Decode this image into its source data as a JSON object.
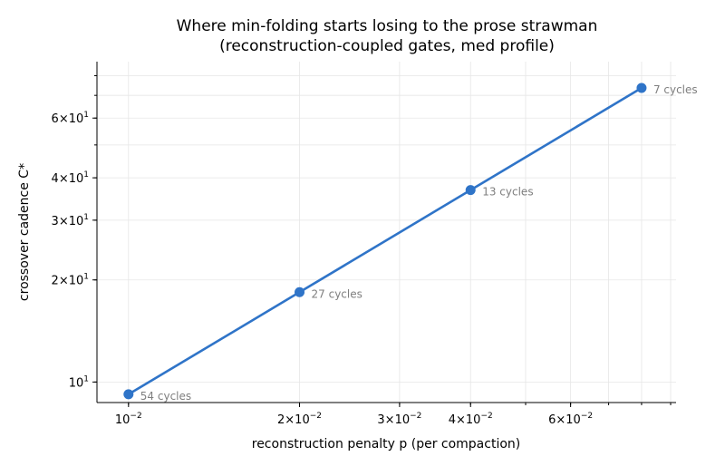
{
  "chart_data": {
    "type": "line",
    "title": "Where min-folding starts losing to the prose strawman",
    "subtitle": "(reconstruction-coupled gates, med profile)",
    "xlabel": "reconstruction penalty p (per compaction)",
    "ylabel": "crossover cadence C*",
    "xscale": "log",
    "yscale": "log",
    "xlim": [
      0.0088,
      0.092
    ],
    "ylim": [
      8.7,
      88
    ],
    "grid": true,
    "grid_minor": true,
    "legend": "none",
    "x": [
      0.01,
      0.02,
      0.04,
      0.08
    ],
    "series": [
      {
        "values": [
          9.2,
          18.4,
          36.8,
          73.6
        ],
        "color": "#2f74c8",
        "point_labels": [
          "54 cycles",
          "27 cycles",
          "13 cycles",
          "7 cycles"
        ]
      }
    ],
    "x_ticks": [
      {
        "value": 0.01,
        "base": "10",
        "exp": "−2"
      },
      {
        "value": 0.02,
        "base": "2×10",
        "exp": "−2"
      },
      {
        "value": 0.03,
        "base": "3×10",
        "exp": "−2"
      },
      {
        "value": 0.04,
        "base": "4×10",
        "exp": "−2"
      },
      {
        "value": 0.06,
        "base": "6×10",
        "exp": "−2"
      }
    ],
    "y_ticks": [
      {
        "value": 10,
        "base": "10",
        "exp": "1"
      },
      {
        "value": 20,
        "base": "2×10",
        "exp": "1"
      },
      {
        "value": 30,
        "base": "3×10",
        "exp": "1"
      },
      {
        "value": 40,
        "base": "4×10",
        "exp": "1"
      },
      {
        "value": 60,
        "base": "6×10",
        "exp": "1"
      }
    ]
  }
}
